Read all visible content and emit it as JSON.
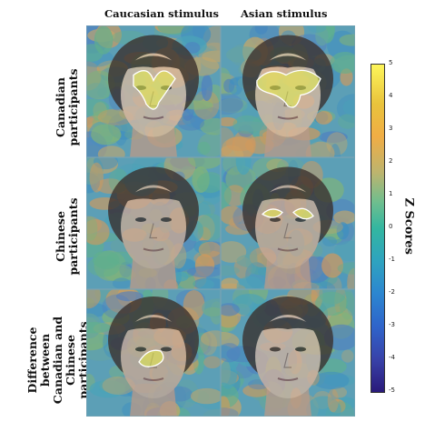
{
  "columns": [
    "Caucasian stimulus",
    "Asian stimulus"
  ],
  "rows": [
    {
      "label_lines": [
        "Canadian",
        "participants"
      ]
    },
    {
      "label_lines": [
        "Chinese",
        "participants"
      ]
    },
    {
      "label_lines": [
        "Difference",
        "between",
        "Canadian and",
        "Chinese",
        "participants"
      ]
    }
  ],
  "colorbar": {
    "title": "Z Scores",
    "ticks": [
      "5",
      "4",
      "3",
      "2",
      "1",
      "0",
      "-1",
      "-2",
      "-3",
      "-4",
      "-5"
    ],
    "colors": [
      "#fdf55a",
      "#e9c33c",
      "#f1b24a",
      "#c7b56a",
      "#62bd94",
      "#2cb3a3",
      "#2e9ec3",
      "#2b7fd0",
      "#2f5fc8",
      "#3a3fa8",
      "#2a1a7a"
    ]
  }
}
